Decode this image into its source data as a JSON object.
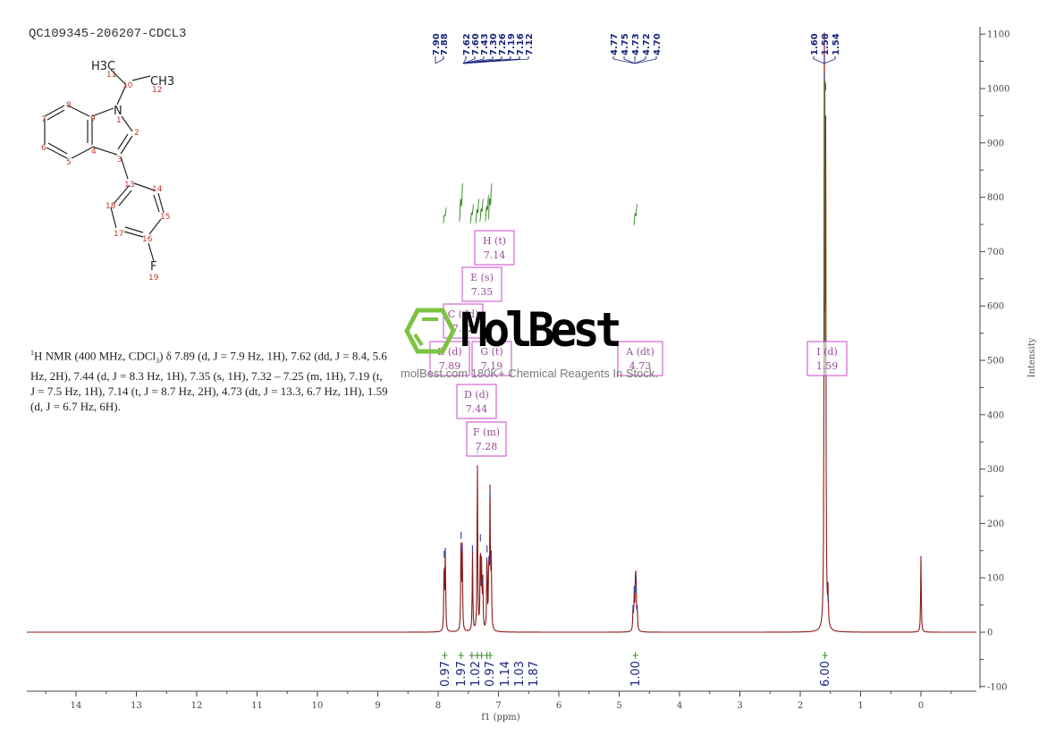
{
  "sample_title": "QC109345-206207-CDCL3",
  "nmr_description": {
    "prefix_sup": "1",
    "line": "H NMR (400 MHz, CDCl",
    "sub": "3",
    "rest": ") δ 7.89 (d, J = 7.9 Hz, 1H), 7.62 (dd, J = 8.4, 5.6 Hz, 2H), 7.44 (d, J = 8.3 Hz, 1H), 7.35 (s, 1H), 7.32 – 7.25 (m, 1H), 7.19 (t, J = 7.5 Hz, 1H), 7.14 (t, J = 8.7 Hz, 2H), 4.73 (dt, J = 13.3, 6.7 Hz, 1H), 1.59 (d, J = 6.7 Hz, 6H)."
  },
  "structure": {
    "atoms": [
      "H3C",
      "CH3",
      "N",
      "F"
    ],
    "numbers": [
      "1",
      "2",
      "3",
      "4",
      "5",
      "6",
      "7",
      "8",
      "9",
      "10",
      "11",
      "12",
      "13",
      "14",
      "15",
      "16",
      "17",
      "18",
      "19"
    ]
  },
  "watermark": {
    "brand": "MolBest",
    "tagline": "molBest.com 180K+ Chemical Reagents In Stock.",
    "logo_color": "#7dc242"
  },
  "colors": {
    "spectrum": "#8b1a1a",
    "peak_labels": "#1a237e",
    "integrals": "#3a8a2a",
    "multiplet_boxes": "#cc44cc",
    "axis": "#444444"
  },
  "chart_data": {
    "type": "line",
    "title": "QC109345-206207-CDCL3",
    "xlabel": "f1 (ppm)",
    "ylabel": "Intensity",
    "xlim": [
      14.8,
      -0.9
    ],
    "ylim": [
      -100,
      1100
    ],
    "x_ticks": [
      14,
      13,
      12,
      11,
      10,
      9,
      8,
      7,
      6,
      5,
      4,
      3,
      2,
      1,
      0
    ],
    "y_ticks": [
      -100,
      0,
      100,
      200,
      300,
      400,
      500,
      600,
      700,
      800,
      900,
      1000,
      1100
    ],
    "grid": false,
    "peak_labels_group1": [
      "7.90",
      "7.88"
    ],
    "peak_labels_group2": [
      "7.62",
      "7.60",
      "7.43",
      "7.30",
      "7.26",
      "7.19",
      "7.16",
      "7.12"
    ],
    "peak_labels_group3": [
      "4.77",
      "4.75",
      "4.73",
      "4.72",
      "4.70"
    ],
    "peak_labels_group4": [
      "1.60",
      "1.58",
      "1.54"
    ],
    "peaks": [
      {
        "ppm": 7.9,
        "intensity": 140
      },
      {
        "ppm": 7.88,
        "intensity": 145
      },
      {
        "ppm": 7.62,
        "intensity": 175
      },
      {
        "ppm": 7.6,
        "intensity": 150
      },
      {
        "ppm": 7.43,
        "intensity": 150
      },
      {
        "ppm": 7.35,
        "intensity": 330
      },
      {
        "ppm": 7.3,
        "intensity": 170
      },
      {
        "ppm": 7.28,
        "intensity": 120
      },
      {
        "ppm": 7.26,
        "intensity": 90
      },
      {
        "ppm": 7.19,
        "intensity": 150
      },
      {
        "ppm": 7.16,
        "intensity": 130
      },
      {
        "ppm": 7.14,
        "intensity": 250
      },
      {
        "ppm": 7.12,
        "intensity": 135
      },
      {
        "ppm": 4.77,
        "intensity": 40
      },
      {
        "ppm": 4.75,
        "intensity": 75
      },
      {
        "ppm": 4.73,
        "intensity": 100
      },
      {
        "ppm": 4.72,
        "intensity": 75
      },
      {
        "ppm": 4.7,
        "intensity": 40
      },
      {
        "ppm": 1.6,
        "intensity": 1020
      },
      {
        "ppm": 1.58,
        "intensity": 1000
      },
      {
        "ppm": 1.54,
        "intensity": 60
      },
      {
        "ppm": 0.0,
        "intensity": 140
      }
    ],
    "integrals": [
      {
        "ppm": 7.89,
        "value": "0.97"
      },
      {
        "ppm": 7.62,
        "value": "1.97"
      },
      {
        "ppm": 7.44,
        "value": "1.02"
      },
      {
        "ppm": 7.35,
        "value": "0.97"
      },
      {
        "ppm": 7.28,
        "value": "1.14"
      },
      {
        "ppm": 7.19,
        "value": "1.03"
      },
      {
        "ppm": 7.14,
        "value": "1.87"
      },
      {
        "ppm": 4.73,
        "value": "1.00"
      },
      {
        "ppm": 1.59,
        "value": "6.00"
      }
    ],
    "multiplets": [
      {
        "id": "H",
        "mult": "(t)",
        "shift": "7.14"
      },
      {
        "id": "E",
        "mult": "(s)",
        "shift": "7.35"
      },
      {
        "id": "C",
        "mult": "(dd)",
        "shift": "7.62"
      },
      {
        "id": "B",
        "mult": "(d)",
        "shift": "7.89"
      },
      {
        "id": "G",
        "mult": "(t)",
        "shift": "7.19"
      },
      {
        "id": "D",
        "mult": "(d)",
        "shift": "7.44"
      },
      {
        "id": "F",
        "mult": "(m)",
        "shift": "7.28"
      },
      {
        "id": "A",
        "mult": "(dt)",
        "shift": "4.73"
      },
      {
        "id": "I",
        "mult": "(d)",
        "shift": "1.59"
      }
    ]
  }
}
